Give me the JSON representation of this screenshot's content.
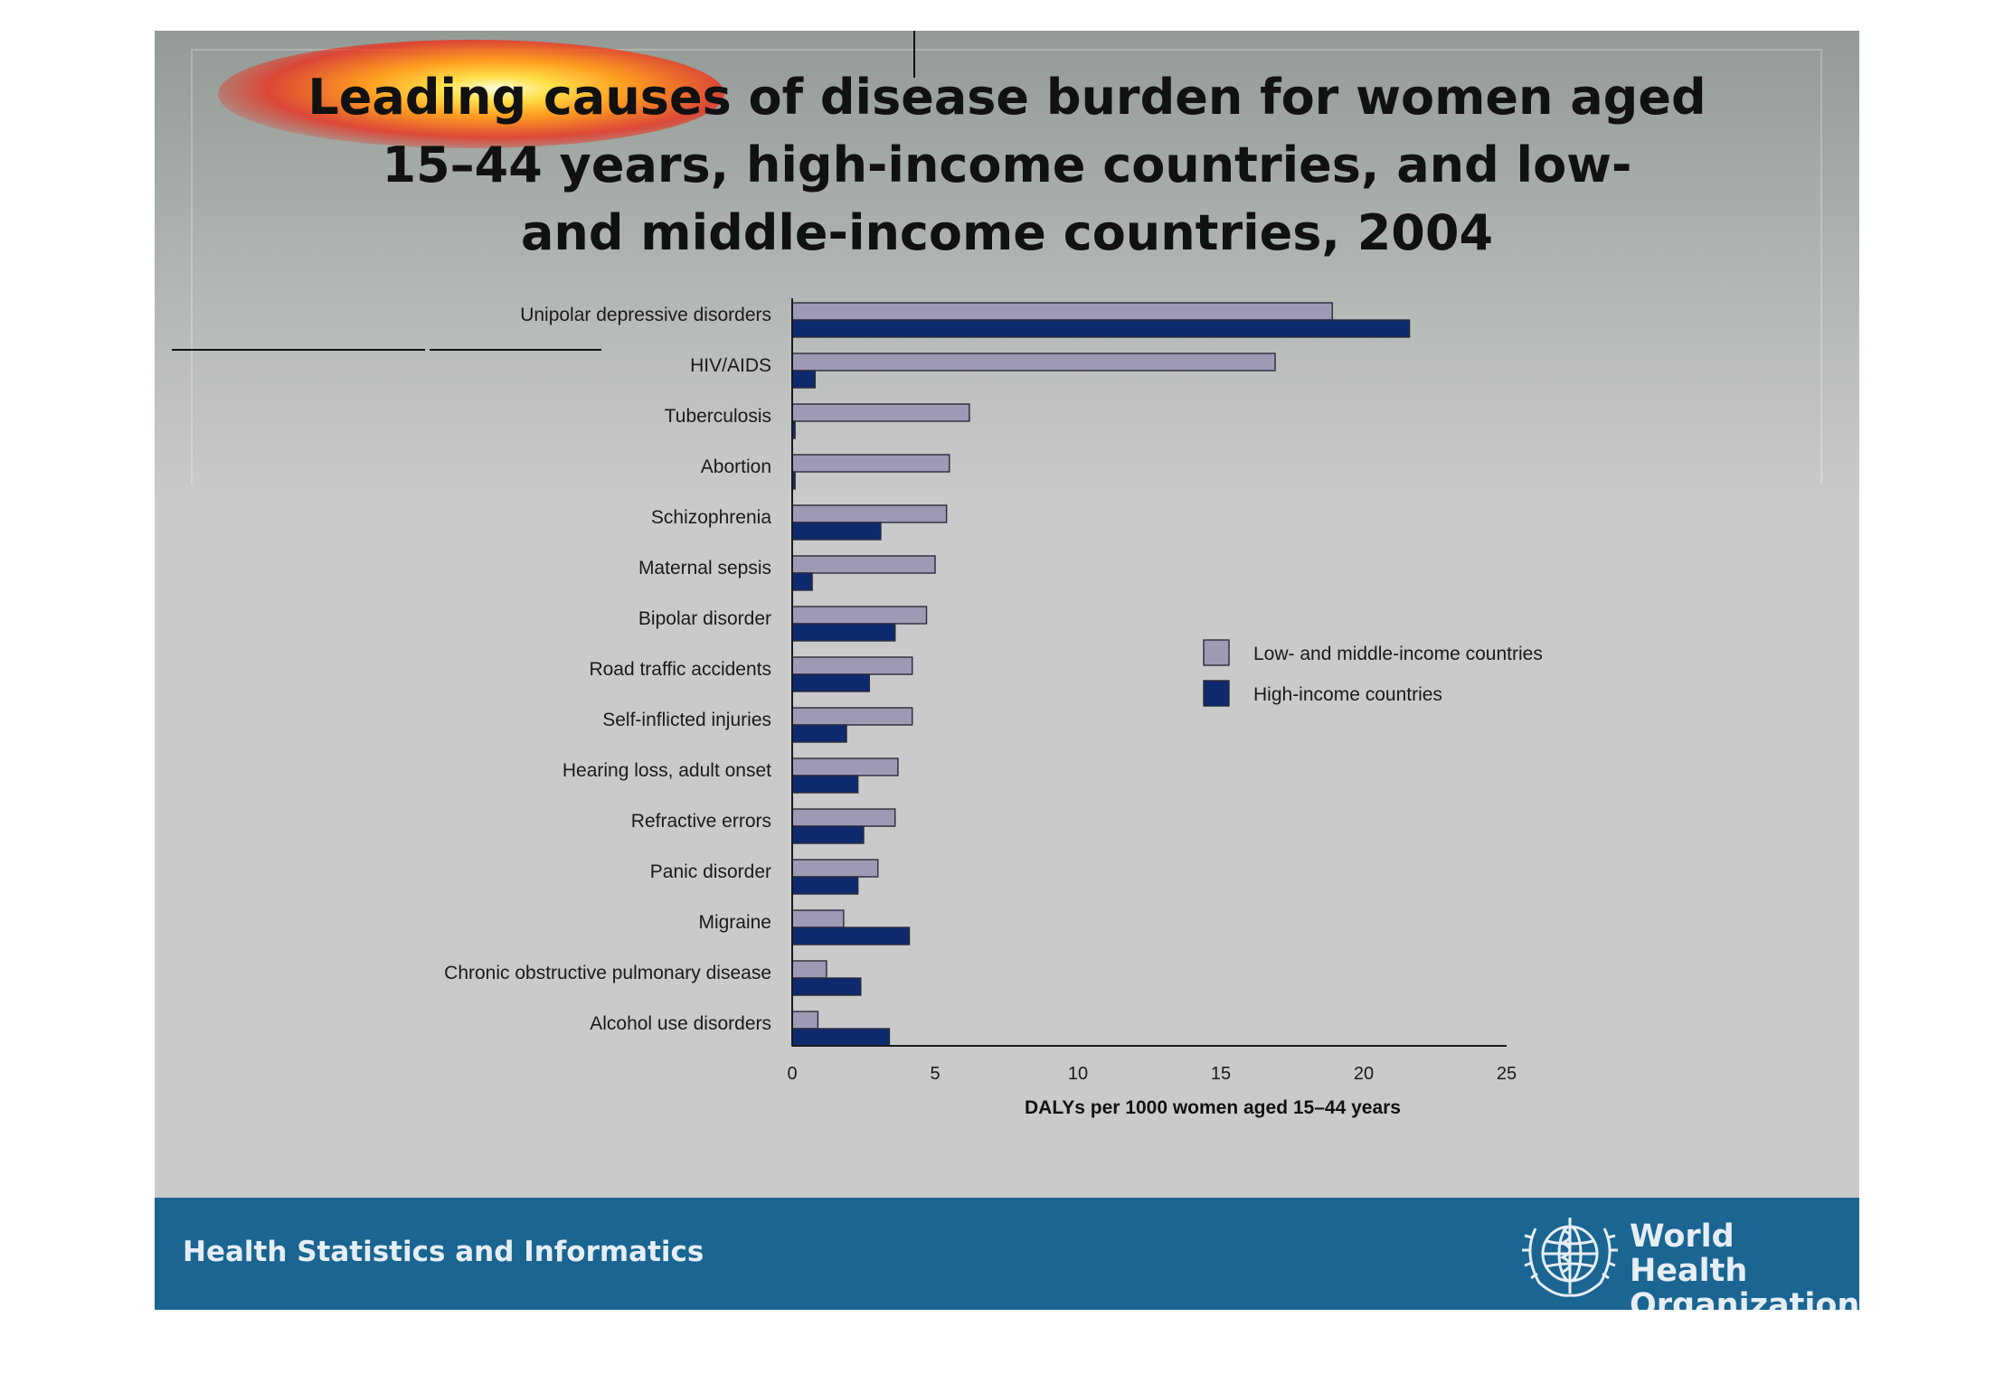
{
  "title_lines": [
    "Leading causes of disease burden for women aged",
    "15–44 years, high-income countries, and low-",
    "and middle-income countries, 2004"
  ],
  "footer": {
    "text": "Health Statistics and Informatics",
    "org_line1": "World Health",
    "org_line2": "Organization",
    "emblem_icon": "who-emblem-icon"
  },
  "colors": {
    "low_middle": "#9e9ab4",
    "high": "#0e2a6e",
    "footer": "#1a6592"
  },
  "chart_data": {
    "type": "bar",
    "orientation": "horizontal",
    "categories": [
      "Unipolar depressive disorders",
      "HIV/AIDS",
      "Tuberculosis",
      "Abortion",
      "Schizophrenia",
      "Maternal sepsis",
      "Bipolar disorder",
      "Road traffic accidents",
      "Self-inflicted injuries",
      "Hearing loss, adult onset",
      "Refractive errors",
      "Panic disorder",
      "Migraine",
      "Chronic obstructive pulmonary disease",
      "Alcohol use disorders"
    ],
    "series": [
      {
        "name": "Low- and middle-income countries",
        "color": "#9e9ab4",
        "values": [
          18.9,
          16.9,
          6.2,
          5.5,
          5.4,
          5.0,
          4.7,
          4.2,
          4.2,
          3.7,
          3.6,
          3.0,
          1.8,
          1.2,
          0.9
        ]
      },
      {
        "name": "High-income countries",
        "color": "#0e2a6e",
        "values": [
          21.6,
          0.8,
          0.1,
          0.1,
          3.1,
          0.7,
          3.6,
          2.7,
          1.9,
          2.3,
          2.5,
          2.3,
          4.1,
          2.4,
          3.4
        ]
      }
    ],
    "xlabel": "DALYs per 1000 women aged 15–44 years",
    "xlim": [
      0,
      25
    ],
    "xticks": [
      "0",
      "5",
      "10",
      "15",
      "20",
      "25"
    ],
    "grid": false,
    "legend_position": "right"
  }
}
